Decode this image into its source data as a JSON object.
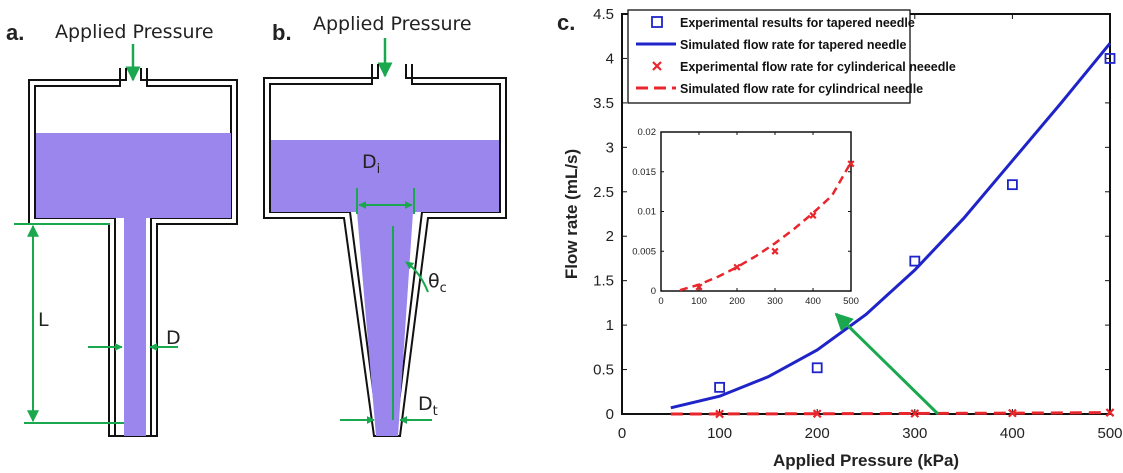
{
  "panel_a": {
    "letter": "a.",
    "pressure_label": "Applied Pressure",
    "length_label": "L",
    "diameter_label": "D"
  },
  "panel_b": {
    "letter": "b.",
    "pressure_label": "Applied Pressure",
    "inner_diameter_label": "D",
    "inner_diameter_sub": "i",
    "angle_label": "θ",
    "angle_sub": "c",
    "tip_diameter_label": "D",
    "tip_diameter_sub": "t"
  },
  "panel_c": {
    "letter": "c."
  },
  "colors": {
    "fluid": "#9b86ee",
    "arrow": "#1aa84e",
    "tapered": "#1f24c8",
    "cylindrical": "#e8262c"
  },
  "chart_data": [
    {
      "type": "line",
      "xlabel": "Applied Pressure (kPa)",
      "ylabel": "Flow rate (mL/s)",
      "xlim": [
        0,
        500
      ],
      "ylim": [
        0,
        4.5
      ],
      "xticks": [
        0,
        100,
        200,
        300,
        400,
        500
      ],
      "yticks": [
        0,
        0.5,
        1,
        1.5,
        2,
        2.5,
        3,
        3.5,
        4,
        4.5
      ],
      "legend_position": "top-left",
      "series": [
        {
          "name": "Experimental results for tapered needle",
          "style": "square-markers",
          "color": "#1f24c8",
          "x": [
            100,
            200,
            300,
            400,
            500
          ],
          "y": [
            0.3,
            0.52,
            1.72,
            2.58,
            4.0
          ]
        },
        {
          "name": "Simulated flow rate for tapered needle",
          "style": "solid-line",
          "color": "#1f24c8",
          "x": [
            50,
            100,
            150,
            200,
            250,
            300,
            350,
            400,
            450,
            500
          ],
          "y": [
            0.07,
            0.2,
            0.42,
            0.72,
            1.12,
            1.62,
            2.2,
            2.85,
            3.5,
            4.17
          ]
        },
        {
          "name": "Experimental flow rate for cylinderical neeedle",
          "style": "x-markers",
          "color": "#e8262c",
          "x": [
            100,
            200,
            300,
            400,
            500
          ],
          "y": [
            0.0005,
            0.003,
            0.005,
            0.0095,
            0.016
          ]
        },
        {
          "name": "Simulated flow rate for cylindrical needle",
          "style": "dashed-line",
          "color": "#e8262c",
          "x": [
            50,
            100,
            150,
            200,
            250,
            300,
            350,
            400,
            450,
            500
          ],
          "y": [
            0.0001,
            0.0008,
            0.0018,
            0.003,
            0.0044,
            0.006,
            0.0078,
            0.0098,
            0.012,
            0.0162
          ]
        }
      ]
    },
    {
      "type": "line",
      "role": "inset",
      "xlim": [
        0,
        500
      ],
      "ylim": [
        0,
        0.02
      ],
      "xticks": [
        0,
        100,
        200,
        300,
        400,
        500
      ],
      "yticks": [
        0,
        0.005,
        0.01,
        0.015,
        0.02
      ],
      "series": [
        {
          "style": "x-markers",
          "color": "#e8262c",
          "x": [
            100,
            200,
            300,
            400,
            500
          ],
          "y": [
            0.0005,
            0.003,
            0.005,
            0.0095,
            0.016
          ]
        },
        {
          "style": "dashed-line",
          "color": "#e8262c",
          "x": [
            50,
            100,
            150,
            200,
            250,
            300,
            350,
            400,
            450,
            500
          ],
          "y": [
            0.0001,
            0.0008,
            0.0018,
            0.003,
            0.0044,
            0.006,
            0.0078,
            0.0098,
            0.012,
            0.0162
          ]
        }
      ]
    }
  ]
}
